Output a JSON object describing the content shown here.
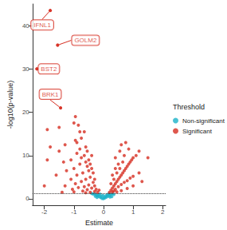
{
  "chart_data": {
    "type": "scatter",
    "x_label": "Estimate",
    "y_label": "-log10(p-value)",
    "xlim": [
      -2.4,
      2.1
    ],
    "xticks": [
      -2,
      -1,
      0,
      1,
      2
    ],
    "ylim": [
      -1.5,
      45
    ],
    "yticks": [
      0,
      10,
      20,
      30,
      40
    ],
    "grid": false,
    "legend": "right",
    "legend_title": "Threshold",
    "series": [
      {
        "name": "Non-significant",
        "color": "#1ab2c8",
        "marker": "circle",
        "points": [
          [
            -0.3,
            1.2
          ],
          [
            -0.25,
            0.9
          ],
          [
            -0.2,
            0.7
          ],
          [
            -0.15,
            0.5
          ],
          [
            -0.1,
            0.3
          ],
          [
            -0.05,
            0.1
          ],
          [
            0,
            0.05
          ],
          [
            0.05,
            0.2
          ],
          [
            0.1,
            0.4
          ],
          [
            0.15,
            0.6
          ],
          [
            0.2,
            0.8
          ],
          [
            0.25,
            1.0
          ],
          [
            0.3,
            1.2
          ],
          [
            -0.35,
            1.1
          ],
          [
            -0.28,
            0.6
          ],
          [
            -0.18,
            0.9
          ],
          [
            -0.12,
            1.1
          ],
          [
            0.12,
            0.9
          ],
          [
            0.18,
            1.2
          ],
          [
            0.22,
            0.4
          ],
          [
            0.08,
            0.7
          ],
          [
            -0.08,
            0.6
          ],
          [
            -0.22,
            0.3
          ],
          [
            0.28,
            0.5
          ],
          [
            0.02,
            0.4
          ],
          [
            -0.02,
            0.8
          ],
          [
            0.35,
            1.0
          ],
          [
            -0.4,
            1.25
          ]
        ]
      },
      {
        "name": "Significant",
        "color": "#d62d20",
        "marker": "circle",
        "points": [
          [
            -1.8,
            43.5
          ],
          [
            -1.55,
            35.5
          ],
          [
            -2.25,
            30
          ],
          [
            -1.45,
            21
          ],
          [
            -1.9,
            16
          ],
          [
            -1.5,
            16.5
          ],
          [
            -1.0,
            17.5
          ],
          [
            -0.85,
            17
          ],
          [
            -0.8,
            15.5
          ],
          [
            -0.75,
            14
          ],
          [
            -0.9,
            13
          ],
          [
            -1.3,
            12.5
          ],
          [
            -1.5,
            11
          ],
          [
            -1.8,
            12
          ],
          [
            -0.6,
            12
          ],
          [
            -0.55,
            11
          ],
          [
            -0.65,
            10
          ],
          [
            -0.9,
            10.5
          ],
          [
            -1.1,
            9
          ],
          [
            -1.9,
            9
          ],
          [
            -1.6,
            5.5
          ],
          [
            -2.0,
            3
          ],
          [
            -0.5,
            9
          ],
          [
            -0.45,
            8
          ],
          [
            -0.6,
            8.5
          ],
          [
            -0.8,
            8
          ],
          [
            -1.0,
            7
          ],
          [
            -1.25,
            6.5
          ],
          [
            -0.4,
            7
          ],
          [
            -0.5,
            6.5
          ],
          [
            -0.7,
            6
          ],
          [
            -0.9,
            5.5
          ],
          [
            -1.1,
            4.5
          ],
          [
            -0.35,
            6
          ],
          [
            -0.45,
            5
          ],
          [
            -0.6,
            4.5
          ],
          [
            -0.75,
            4
          ],
          [
            -0.95,
            3.5
          ],
          [
            -1.3,
            3
          ],
          [
            -0.3,
            4.5
          ],
          [
            -0.35,
            3.8
          ],
          [
            -0.5,
            3.2
          ],
          [
            -0.65,
            2.8
          ],
          [
            -0.85,
            2.6
          ],
          [
            -1.05,
            2.2
          ],
          [
            -0.3,
            3
          ],
          [
            -0.4,
            2.5
          ],
          [
            -0.55,
            2.1
          ],
          [
            -0.7,
            1.8
          ],
          [
            -0.25,
            2.2
          ],
          [
            -0.3,
            1.7
          ],
          [
            -0.45,
            1.5
          ],
          [
            -0.6,
            1.4
          ],
          [
            -1.0,
            1.6
          ],
          [
            -1.4,
            1.5
          ],
          [
            -0.2,
            1.5
          ],
          [
            -0.15,
            2.0
          ],
          [
            -0.8,
            11.5
          ],
          [
            -0.95,
            13.5
          ],
          [
            -0.75,
            9.5
          ],
          [
            -0.55,
            7.5
          ],
          [
            -1.35,
            8.5
          ],
          [
            -0.65,
            15.5
          ],
          [
            -0.95,
            19
          ],
          [
            -0.4,
            10
          ],
          [
            0.2,
            1.5
          ],
          [
            0.25,
            2
          ],
          [
            0.3,
            2.5
          ],
          [
            0.35,
            3
          ],
          [
            0.4,
            3.5
          ],
          [
            0.45,
            4
          ],
          [
            0.5,
            4.5
          ],
          [
            0.55,
            5
          ],
          [
            0.6,
            5.5
          ],
          [
            0.65,
            6
          ],
          [
            0.7,
            6.5
          ],
          [
            0.75,
            7
          ],
          [
            0.8,
            7.5
          ],
          [
            0.85,
            8
          ],
          [
            0.9,
            8.5
          ],
          [
            0.95,
            9
          ],
          [
            1.0,
            9.5
          ],
          [
            1.1,
            10
          ],
          [
            1.2,
            11
          ],
          [
            0.3,
            1.6
          ],
          [
            0.4,
            2.2
          ],
          [
            0.5,
            2.8
          ],
          [
            0.6,
            3.3
          ],
          [
            0.7,
            3.8
          ],
          [
            0.8,
            4.2
          ],
          [
            0.9,
            4.8
          ],
          [
            1.0,
            5.2
          ],
          [
            1.2,
            6
          ],
          [
            1.5,
            9.5
          ],
          [
            0.25,
            3.5
          ],
          [
            0.35,
            4.5
          ],
          [
            0.45,
            6
          ],
          [
            0.55,
            7
          ],
          [
            0.65,
            8.5
          ],
          [
            0.7,
            10
          ],
          [
            0.55,
            11
          ],
          [
            0.6,
            12.5
          ],
          [
            0.75,
            13
          ],
          [
            0.4,
            9.5
          ],
          [
            0.5,
            8
          ],
          [
            0.85,
            11.5
          ],
          [
            1.3,
            4
          ],
          [
            0.35,
            1.8
          ],
          [
            0.45,
            1.6
          ],
          [
            0.6,
            1.9
          ],
          [
            0.8,
            2.4
          ],
          [
            1.0,
            3
          ],
          [
            0.3,
            5.5
          ],
          [
            0.4,
            7
          ]
        ]
      }
    ],
    "annotations": [
      {
        "label": "IFNL1",
        "x": -1.8,
        "y": 43.5,
        "series": "Significant"
      },
      {
        "label": "GOLM2",
        "x": -1.55,
        "y": 35.5,
        "series": "Significant"
      },
      {
        "label": "BST2",
        "x": -2.25,
        "y": 30,
        "series": "Significant"
      },
      {
        "label": "BRK1",
        "x": -1.45,
        "y": 21,
        "series": "Significant"
      }
    ],
    "reference_line": {
      "y": 1.3,
      "line_style": "dotted"
    }
  }
}
